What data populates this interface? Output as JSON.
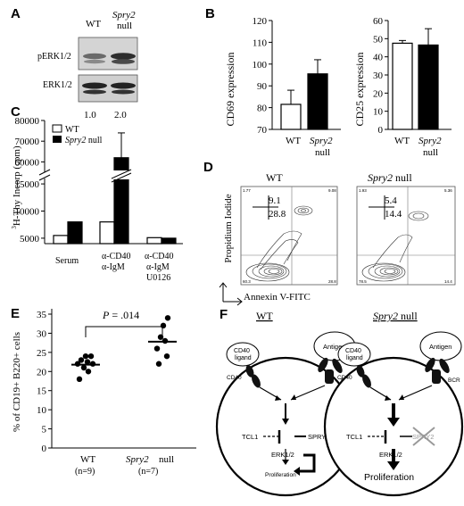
{
  "panel_letters": [
    "A",
    "B",
    "C",
    "D",
    "E",
    "F"
  ],
  "panelA": {
    "col_labels": [
      "WT",
      "Spry2",
      "null"
    ],
    "row_labels": [
      "pERK1/2",
      "ERK1/2"
    ],
    "quant": [
      "1.0",
      "2.0"
    ]
  },
  "panelB": {
    "cd69": {
      "ylabel": "CD69 expression",
      "ticks": [
        "120",
        "110",
        "100",
        "90",
        "80",
        "70"
      ],
      "xlabels": [
        "WT",
        "Spry2",
        "null"
      ]
    },
    "cd25": {
      "ylabel": "CD25 expression",
      "ticks": [
        "60",
        "50",
        "40",
        "30",
        "20",
        "10",
        "0"
      ],
      "xlabels": [
        "WT",
        "Spry2",
        "null"
      ]
    }
  },
  "panelC": {
    "ylabel_sup": "3",
    "ylabel": "H-Thy Incorp (cpm)",
    "ticks": [
      "80000",
      "70000",
      "60000",
      "15000",
      "10000",
      "5000"
    ],
    "legend": [
      "WT",
      "Spry2",
      "null"
    ],
    "groups": [
      "Serum",
      "α-CD40",
      "α-IgM",
      "α-CD40",
      "α-IgM",
      "U0126"
    ]
  },
  "panelD": {
    "titles": [
      "WT",
      "Spry2",
      "null"
    ],
    "wt_q": [
      "9.1",
      "28.8"
    ],
    "null_q": [
      "5.4",
      "14.4"
    ],
    "wt_corner": [
      "1.77",
      "9.08",
      "60.3",
      "28.8"
    ],
    "null_corner": [
      "1.93",
      "5.36",
      "78.5",
      "14.4"
    ],
    "ylabel": "Propidium Iodide",
    "xlabel": "Annexin V-FITC"
  },
  "panelE": {
    "pvalue": "P = .014",
    "ylabel": "% of CD19+ B220+ cells",
    "ticks": [
      "35",
      "30",
      "25",
      "20",
      "15",
      "10",
      "5",
      "0"
    ],
    "xlabels": [
      "WT",
      "(n=9)",
      "Spry2",
      "null",
      "(n=7)"
    ]
  },
  "panelF": {
    "wt_title": "WT",
    "null_title": [
      "Spry2",
      "null"
    ],
    "labels": {
      "cd40_ligand": [
        "CD40",
        "ligand"
      ],
      "antigen": "Antigen",
      "cd40": "CD40",
      "bcr": "BCR",
      "tcl1": "TCL1",
      "spry2": "SPRY2",
      "erk": "ERK1/2",
      "prolif": "Proliferation"
    }
  },
  "chart_data": [
    {
      "type": "bar",
      "title": "",
      "ylabel": "CD69 expression",
      "categories": [
        "WT",
        "Spry2 null"
      ],
      "values": [
        81.5,
        95.5
      ],
      "errors": [
        6.5,
        6.5
      ],
      "ylim": [
        70,
        120
      ],
      "colors": [
        "#ffffff",
        "#000000"
      ]
    },
    {
      "type": "bar",
      "title": "",
      "ylabel": "CD25 expression",
      "categories": [
        "WT",
        "Spry2 null"
      ],
      "values": [
        47.5,
        46.5
      ],
      "errors": [
        1.5,
        9
      ],
      "ylim": [
        0,
        60
      ],
      "colors": [
        "#ffffff",
        "#000000"
      ]
    },
    {
      "type": "bar",
      "title": "",
      "ylabel": "3H-Thy Incorp (cpm)",
      "categories": [
        "Serum",
        "α-CD40 α-IgM",
        "α-CD40 α-IgM U0126"
      ],
      "series": [
        {
          "name": "WT",
          "values": [
            5500,
            8000,
            5100
          ],
          "color": "#ffffff"
        },
        {
          "name": "Spry2 null",
          "values": [
            8000,
            62000,
            5000
          ],
          "color": "#000000"
        }
      ],
      "errors_spry2": [
        0,
        12000,
        0
      ],
      "broken_axis": true,
      "ylim": [
        4000,
        80000
      ]
    },
    {
      "type": "scatter",
      "title": "",
      "ylabel": "% of CD19+ B220+ cells",
      "annotation": "P = .014",
      "ylim": [
        0,
        35
      ],
      "series": [
        {
          "name": "WT (n=9)",
          "values": [
            18,
            20,
            21,
            22,
            22,
            22.5,
            23,
            24,
            24
          ],
          "mean": 21.8
        },
        {
          "name": "Spry2 null (n=7)",
          "values": [
            22,
            24,
            26,
            28,
            29,
            32,
            34
          ],
          "mean": 27.8
        }
      ]
    }
  ]
}
